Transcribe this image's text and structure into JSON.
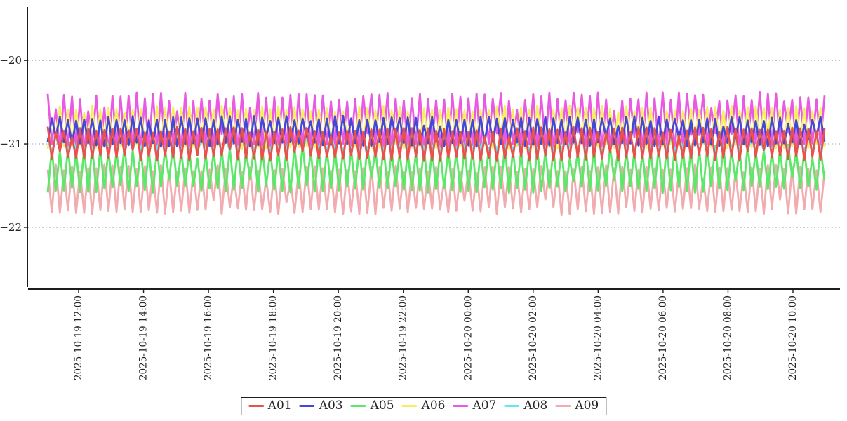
{
  "chart_data": {
    "type": "line",
    "title": "",
    "xlabel": "",
    "ylabel": "",
    "x_tick_labels": [
      "2025-10-19 12:00",
      "2025-10-19 14:00",
      "2025-10-19 16:00",
      "2025-10-19 18:00",
      "2025-10-19 20:00",
      "2025-10-19 22:00",
      "2025-10-20 00:00",
      "2025-10-20 02:00",
      "2025-10-20 04:00",
      "2025-10-20 06:00",
      "2025-10-20 08:00",
      "2025-10-20 10:00"
    ],
    "y_ticks": [
      -20,
      -21,
      -22
    ],
    "y_tick_labels": [
      "−20",
      "−21",
      "−22"
    ],
    "ylim": [
      -22.74,
      -19.36
    ],
    "time_span": "approx. 2025-10-19 11:00 to 2025-10-20 11:00",
    "oscillation_period_minutes": 15,
    "points_per_series": 193,
    "grid": "horizontal dashed gridlines at each y tick",
    "legend_position": "bottom center",
    "colors": {
      "axis": "#1d1d1d",
      "grid": "#9a9a9a",
      "tick_text": "#262626",
      "background": "#ffffff"
    },
    "series": [
      {
        "name": "A01",
        "color": "#e9514d",
        "center": -21.0,
        "amplitude": 0.2,
        "approx_min": -21.2,
        "approx_max": -20.8,
        "phase": 0,
        "seed": 101
      },
      {
        "name": "A03",
        "color": "#4447da",
        "center": -20.85,
        "amplitude": 0.18,
        "approx_min": -21.03,
        "approx_max": -20.67,
        "phase": 1,
        "seed": 103
      },
      {
        "name": "A05",
        "color": "#5ce868",
        "center": -21.3,
        "amplitude": 0.29,
        "approx_min": -21.6,
        "approx_max": -21.02,
        "phase": 1,
        "seed": 105
      },
      {
        "name": "A06",
        "color": "#f6ef62",
        "center": -20.8,
        "amplitude": 0.26,
        "approx_min": -21.06,
        "approx_max": -20.54,
        "phase": 1,
        "seed": 106
      },
      {
        "name": "A07",
        "color": "#e95ae2",
        "center": -20.74,
        "amplitude": 0.36,
        "approx_min": -21.1,
        "approx_max": -20.38,
        "phase": 0,
        "seed": 107
      },
      {
        "name": "A08",
        "color": "#66e6ef",
        "center": -21.0,
        "amplitude": 0.09,
        "approx_min": -21.09,
        "approx_max": -20.91,
        "phase": 0,
        "seed": 108
      },
      {
        "name": "A09",
        "color": "#f2abae",
        "center": -21.55,
        "amplitude": 0.3,
        "approx_min": -21.86,
        "approx_max": -21.25,
        "phase": 0,
        "seed": 109
      }
    ],
    "draw_order": [
      "A09",
      "A05",
      "A07",
      "A06",
      "A08",
      "A03",
      "A01"
    ]
  },
  "legend": {
    "items": [
      {
        "label": "A01",
        "color": "#e9514d"
      },
      {
        "label": "A03",
        "color": "#4447da"
      },
      {
        "label": "A05",
        "color": "#5ce868"
      },
      {
        "label": "A06",
        "color": "#f6ef62"
      },
      {
        "label": "A07",
        "color": "#e95ae2"
      },
      {
        "label": "A08",
        "color": "#66e6ef"
      },
      {
        "label": "A09",
        "color": "#f2abae"
      }
    ]
  }
}
